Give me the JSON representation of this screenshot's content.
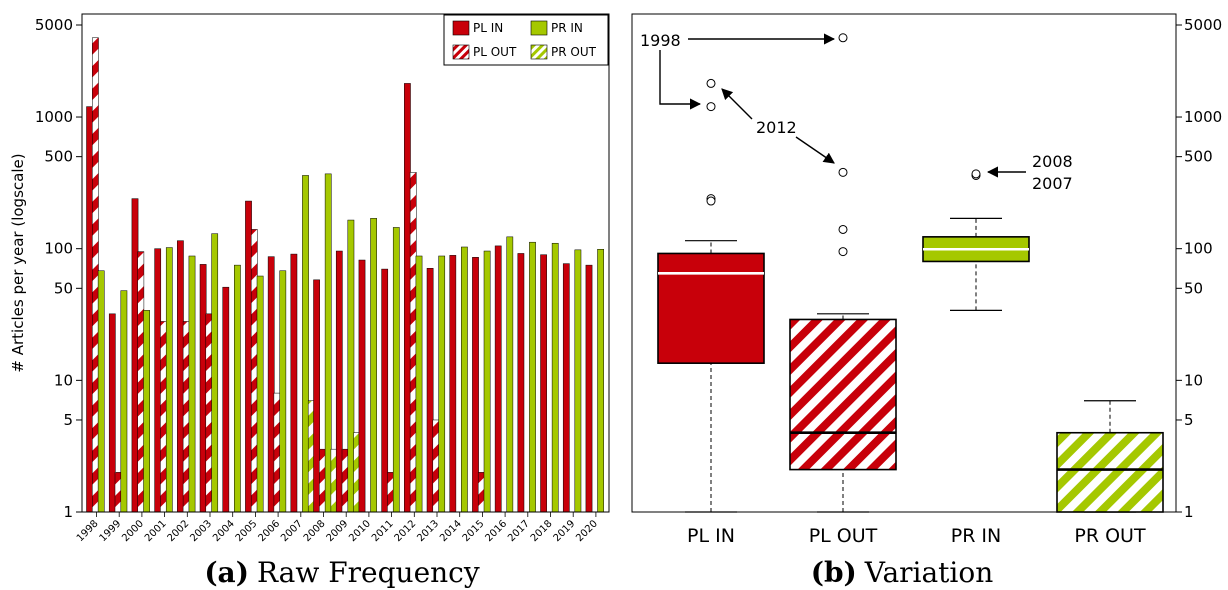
{
  "colors": {
    "pl": "#c8000a",
    "pr": "#a5c800",
    "outline": "#000000"
  },
  "chart_data": [
    {
      "type": "bar",
      "title": "",
      "caption": {
        "letter": "(a)",
        "text": "Raw Frequency"
      },
      "ylabel": "# Articles per year (logscale)",
      "xlabel": "",
      "scale": "log",
      "ylim": [
        1,
        5000
      ],
      "yticks": [
        "1",
        "5",
        "10",
        "50",
        "100",
        "500",
        "1000",
        "5000"
      ],
      "categories": [
        "1998",
        "1999",
        "2000",
        "2001",
        "2002",
        "2003",
        "2004",
        "2005",
        "2006",
        "2007",
        "2008",
        "2009",
        "2010",
        "2011",
        "2012",
        "2013",
        "2014",
        "2015",
        "2016",
        "2017",
        "2018",
        "2019",
        "2020"
      ],
      "legend": {
        "placement": "top-right",
        "entries": [
          "PL IN",
          "PR IN",
          "PL OUT",
          "PR OUT"
        ]
      },
      "series": [
        {
          "name": "PL IN",
          "values": [
            1200,
            32,
            240,
            100,
            115,
            76,
            51,
            230,
            87,
            91,
            58,
            96,
            82,
            70,
            1800,
            71,
            89,
            86,
            105,
            92,
            90,
            77,
            75
          ]
        },
        {
          "name": "PL OUT",
          "values": [
            4000,
            2,
            95,
            28,
            28,
            32,
            1,
            140,
            8,
            1,
            3,
            3,
            1,
            2,
            380,
            5,
            1,
            2,
            1,
            1,
            1,
            1,
            1
          ]
        },
        {
          "name": "PR IN",
          "values": [
            68,
            48,
            34,
            102,
            88,
            130,
            75,
            62,
            68,
            360,
            370,
            165,
            170,
            145,
            88,
            88,
            103,
            96,
            123,
            112,
            110,
            98,
            99
          ]
        },
        {
          "name": "PR OUT",
          "values": [
            1,
            1,
            1,
            1,
            1,
            1,
            1,
            1,
            1,
            7,
            3,
            4,
            1,
            1,
            1,
            1,
            1,
            1,
            1,
            1,
            1,
            1,
            1
          ]
        }
      ]
    },
    {
      "type": "box",
      "title": "",
      "caption": {
        "letter": "(b)",
        "text": "Variation"
      },
      "scale": "log",
      "ylim": [
        1,
        5000
      ],
      "yticks": [
        "1",
        "5",
        "10",
        "50",
        "100",
        "500",
        "1000",
        "5000"
      ],
      "categories": [
        "PL IN",
        "PL OUT",
        "PR IN",
        "PR OUT"
      ],
      "boxes": [
        {
          "name": "PL IN",
          "min": 1,
          "q1": 13.5,
          "median": 65,
          "q3": 92,
          "whisker_high": 115,
          "outliers": [
            1200,
            1800,
            240,
            230
          ]
        },
        {
          "name": "PL OUT",
          "min": 1,
          "q1": 2.1,
          "median": 4,
          "q3": 29,
          "whisker_high": 32,
          "outliers": [
            4000,
            380,
            140,
            95
          ]
        },
        {
          "name": "PR IN",
          "min": 34,
          "q1": 80,
          "median": 99,
          "q3": 123,
          "whisker_high": 170,
          "outliers": [
            360,
            370
          ]
        },
        {
          "name": "PR OUT",
          "min": 1,
          "q1": 1,
          "median": 2.1,
          "q3": 4,
          "whisker_high": 7,
          "outliers": []
        }
      ],
      "annotations": [
        {
          "label": "1998",
          "points_to": [
            "PL IN 1200",
            "PL OUT 4000"
          ]
        },
        {
          "label": "2012",
          "points_to": [
            "PL IN 1800",
            "PL OUT 380"
          ]
        },
        {
          "label": "2008",
          "points_to": [
            "PR IN 370"
          ]
        },
        {
          "label": "2007",
          "points_to": [
            "PR IN 360"
          ]
        }
      ]
    }
  ]
}
